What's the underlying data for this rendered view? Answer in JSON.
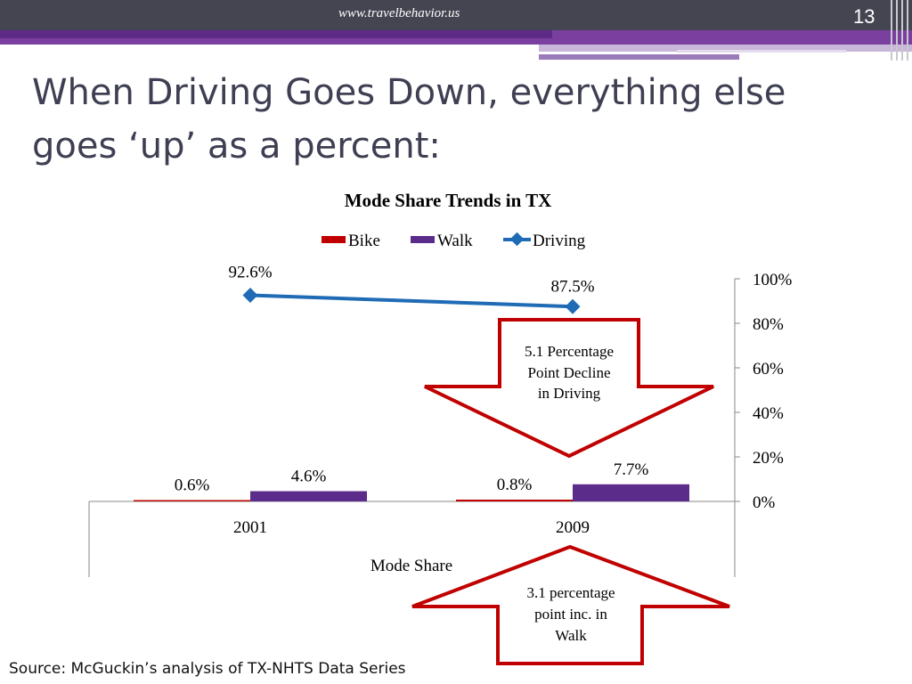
{
  "header": {
    "url": "www.travelbehavior.us",
    "page_number": "13"
  },
  "slide": {
    "title": "When Driving Goes Down, everything else goes ‘up’ as a percent:",
    "source": "Source: McGuckin’s analysis of TX-NHTS Data Series"
  },
  "chart_data": {
    "type": "bar",
    "title": "Mode Share Trends in TX",
    "xlabel": "Mode Share",
    "ylabel": "",
    "categories": [
      "2001",
      "2009"
    ],
    "ylim": [
      0,
      100
    ],
    "yticks": [
      "0%",
      "20%",
      "40%",
      "60%",
      "80%",
      "100%"
    ],
    "y_axis_side": "right",
    "legend_position": "top",
    "series": [
      {
        "name": "Bike",
        "type": "bar",
        "color": "#c00000",
        "values": [
          0.6,
          0.8
        ],
        "labels": [
          "0.6%",
          "0.8%"
        ]
      },
      {
        "name": "Walk",
        "type": "bar",
        "color": "#5b2c8a",
        "values": [
          4.6,
          7.7
        ],
        "labels": [
          "4.6%",
          "7.7%"
        ]
      },
      {
        "name": "Driving",
        "type": "line",
        "color": "#1f6bb5",
        "values": [
          92.6,
          87.5
        ],
        "labels": [
          "92.6%",
          "87.5%"
        ]
      }
    ]
  },
  "annotations": {
    "decline": [
      "5.1 Percentage",
      "Point Decline",
      "in Driving"
    ],
    "increase": [
      "3.1 percentage",
      "point inc. in",
      "Walk"
    ]
  }
}
